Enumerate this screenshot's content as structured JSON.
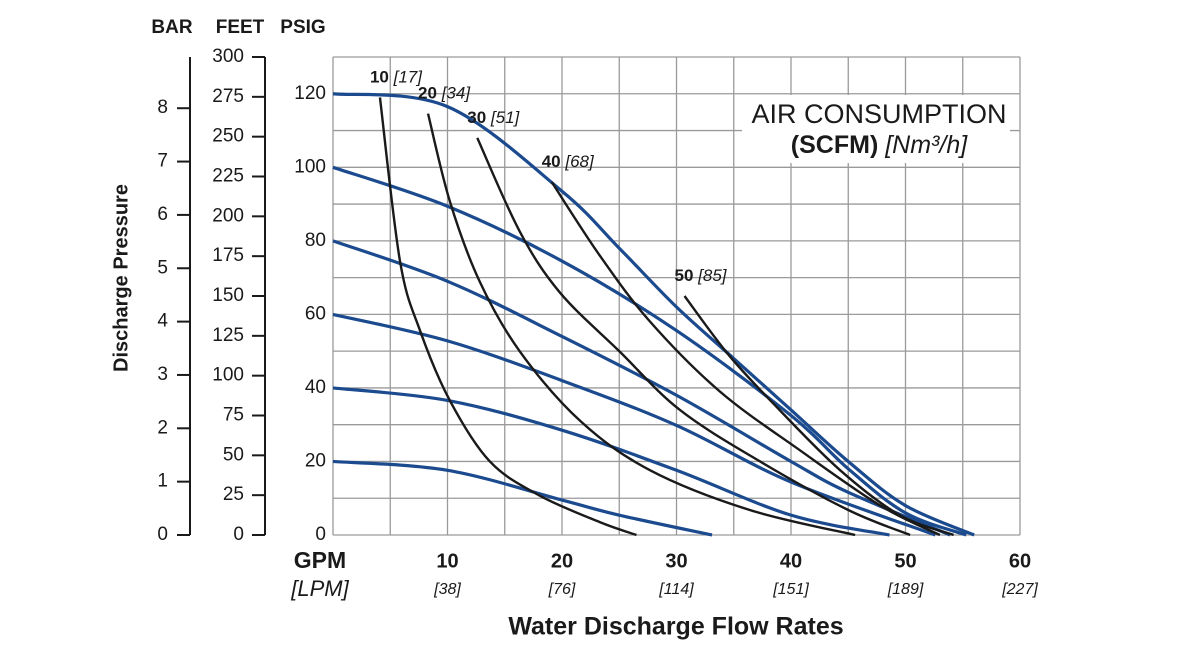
{
  "chart_data": {
    "type": "line",
    "ylabel": "Discharge Pressure",
    "ylabel_unit": "PSIG",
    "xlabel": "Water Discharge Flow Rates",
    "x_unit": "GPM",
    "x2_unit": "[LPM]",
    "legend_title": {
      "line1": "AIR CONSUMPTION",
      "unit": "(SCFM)",
      "metric_unit": "[Nm³/h]"
    },
    "xlim": [
      0,
      60
    ],
    "xticks": [
      10,
      20,
      30,
      40,
      50,
      60
    ],
    "x2ticklabels": [
      "[38]",
      "[76]",
      "[114]",
      "[151]",
      "[189]",
      "[227]"
    ],
    "ylim": [
      0,
      130
    ],
    "yticks": [
      0,
      20,
      40,
      60,
      80,
      100,
      120
    ],
    "grid": true,
    "xgrid": [
      0,
      5,
      10,
      15,
      20,
      25,
      30,
      35,
      40,
      45,
      50,
      55,
      60
    ],
    "ygrid": [
      0,
      10,
      20,
      30,
      40,
      50,
      60,
      70,
      80,
      90,
      100,
      110,
      120,
      130
    ],
    "bar_axis": {
      "label": "BAR",
      "ylim": [
        0,
        8.96
      ],
      "yticks": [
        0,
        1,
        2,
        3,
        4,
        5,
        6,
        7,
        8
      ]
    },
    "feet_axis": {
      "label": "FEET",
      "ylim": [
        0,
        300
      ],
      "yticks": [
        0,
        25,
        50,
        75,
        100,
        125,
        150,
        175,
        200,
        225,
        250,
        275,
        300
      ]
    },
    "series": [
      {
        "color": "#1b4a8e",
        "x": [
          0,
          10,
          20,
          25,
          30,
          35,
          40,
          45,
          50,
          56
        ],
        "values": [
          120,
          116.5,
          93.5,
          78,
          62,
          48,
          34,
          20,
          8,
          0
        ]
      },
      {
        "color": "#1b4a8e",
        "x": [
          0,
          10,
          20,
          30,
          40,
          45,
          50,
          55.3
        ],
        "values": [
          100,
          89.4,
          74.5,
          55.6,
          32.5,
          18,
          6,
          0
        ]
      },
      {
        "color": "#1b4a8e",
        "x": [
          0,
          10,
          20,
          30,
          40,
          45,
          53.9
        ],
        "values": [
          80,
          69,
          54,
          38,
          20,
          11.6,
          0
        ]
      },
      {
        "color": "#1b4a8e",
        "x": [
          0,
          10,
          20,
          30,
          40,
          52.6
        ],
        "values": [
          60,
          52.8,
          42,
          29.8,
          14.4,
          0
        ]
      },
      {
        "color": "#1b4a8e",
        "x": [
          0,
          10,
          20,
          30,
          40,
          48.6
        ],
        "values": [
          40,
          36.6,
          28.5,
          17.6,
          5.4,
          0
        ]
      },
      {
        "color": "#1b4a8e",
        "x": [
          0,
          10,
          20,
          25,
          33.1
        ],
        "values": [
          20,
          17.6,
          9.5,
          5.4,
          0
        ]
      },
      {
        "name": "10",
        "name_metric": "[17]",
        "color": "#1a1a1a",
        "x": [
          4.1,
          5.85,
          7.6,
          10.2,
          13.7,
          18,
          23.3,
          26.5
        ],
        "values": [
          119,
          74.5,
          55.6,
          36.6,
          20,
          10.8,
          3.5,
          0
        ]
      },
      {
        "name": "20",
        "name_metric": "[34]",
        "color": "#1a1a1a",
        "x": [
          8.3,
          10.2,
          12.8,
          16.3,
          21.6,
          27.7,
          36.4,
          45.6
        ],
        "values": [
          114.6,
          90.8,
          69,
          50,
          31,
          17.6,
          6.8,
          0
        ]
      },
      {
        "name": "30",
        "name_metric": "[51]",
        "color": "#1a1a1a",
        "x": [
          12.6,
          16.3,
          19.8,
          25,
          30.3,
          37.3,
          45,
          50.4
        ],
        "values": [
          108,
          82.6,
          66,
          50,
          34,
          20,
          6.8,
          0
        ]
      },
      {
        "name": "40",
        "name_metric": "[68]",
        "color": "#1a1a1a",
        "x": [
          19.1,
          23.3,
          27.7,
          33.8,
          40.8,
          47.8,
          53
        ],
        "values": [
          96,
          76,
          58,
          39,
          23,
          8,
          0
        ]
      },
      {
        "name": "50",
        "name_metric": "[85]",
        "color": "#1a1a1a",
        "x": [
          30.7,
          34.6,
          39,
          44.3,
          49.5,
          54.2
        ],
        "values": [
          65,
          48.8,
          34,
          17.6,
          5.4,
          0
        ]
      }
    ]
  }
}
